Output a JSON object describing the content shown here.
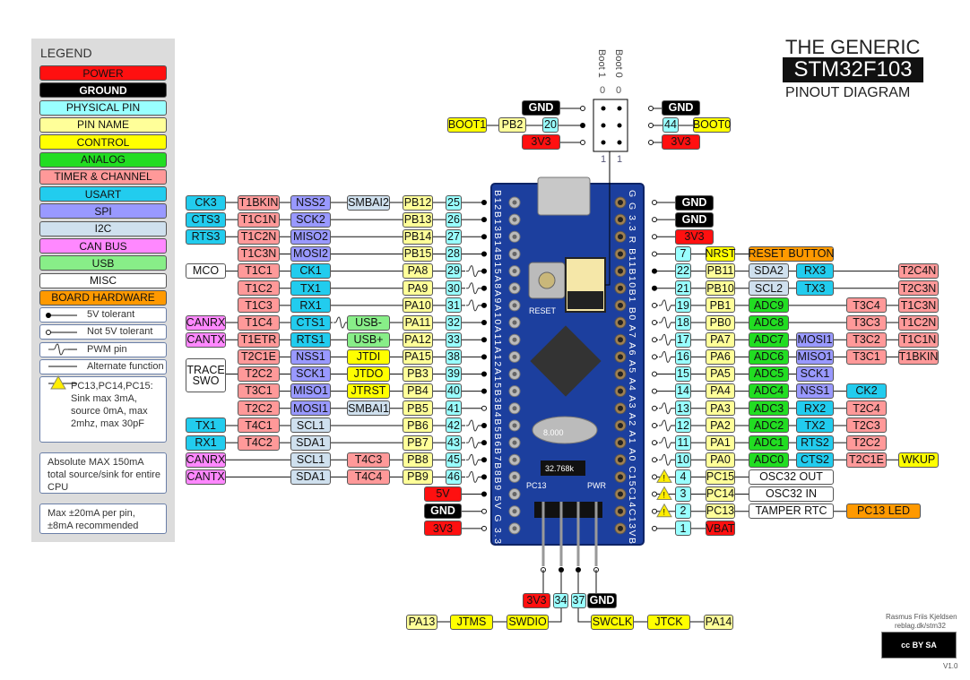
{
  "title": {
    "line1": "THE GENERIC",
    "line2": "STM32F103",
    "line3": "PINOUT DIAGRAM"
  },
  "colors": {
    "power": "#ff1010",
    "ground": "#000000",
    "physical": "#99ffff",
    "pinname": "#ffff99",
    "control": "#ffff00",
    "analog": "#22dd22",
    "timer": "#ff9999",
    "usart": "#22ccee",
    "spi": "#9999ff",
    "i2c": "#cfe0ee",
    "can": "#ff88ff",
    "usb": "#88ee88",
    "misc": "#ffffff",
    "board": "#ff9900",
    "pcb": "#1c3f9e"
  },
  "legend": {
    "title": "LEGEND",
    "items": [
      {
        "label": "POWER",
        "k": "power"
      },
      {
        "label": "GROUND",
        "k": "ground"
      },
      {
        "label": "PHYSICAL PIN",
        "k": "physical"
      },
      {
        "label": "PIN NAME",
        "k": "pinname"
      },
      {
        "label": "CONTROL",
        "k": "control"
      },
      {
        "label": "ANALOG",
        "k": "analog"
      },
      {
        "label": "TIMER & CHANNEL",
        "k": "timer"
      },
      {
        "label": "USART",
        "k": "usart"
      },
      {
        "label": "SPI",
        "k": "spi"
      },
      {
        "label": "I2C",
        "k": "i2c"
      },
      {
        "label": "CAN BUS",
        "k": "can"
      },
      {
        "label": "USB",
        "k": "usb"
      },
      {
        "label": "MISC",
        "k": "misc"
      },
      {
        "label": "BOARD HARDWARE",
        "k": "board"
      }
    ],
    "symbols": [
      {
        "label": "5V tolerant",
        "icon": "filled-dot"
      },
      {
        "label": "Not 5V tolerant",
        "icon": "open-dot"
      },
      {
        "label": "PWM pin",
        "icon": "pwm-wave"
      },
      {
        "label": "Alternate function",
        "icon": "line"
      }
    ],
    "warning": "PC13,PC14,PC15: Sink max 3mA, source 0mA, max 2mhz, max 30pF",
    "note1": "Absolute MAX 150mA total source/sink for entire CPU",
    "note2": "Max ±20mA per pin, ±8mA recommended"
  },
  "left_pins": [
    {
      "cells": [
        {
          "t": "CK3",
          "k": "usart"
        },
        {
          "t": "T1BKIN",
          "k": "timer"
        },
        {
          "t": "NSS2",
          "k": "spi"
        },
        {
          "t": "SMBAI2",
          "k": "i2c"
        },
        {
          "t": "PB12",
          "k": "pinname"
        },
        {
          "t": "25",
          "k": "physical"
        }
      ],
      "tol": "5v"
    },
    {
      "cells": [
        {
          "t": "CTS3",
          "k": "usart"
        },
        {
          "t": "T1C1N",
          "k": "timer"
        },
        {
          "t": "SCK2",
          "k": "spi"
        },
        null,
        {
          "t": "PB13",
          "k": "pinname"
        },
        {
          "t": "26",
          "k": "physical"
        }
      ],
      "tol": "5v"
    },
    {
      "cells": [
        {
          "t": "RTS3",
          "k": "usart"
        },
        {
          "t": "T1C2N",
          "k": "timer"
        },
        {
          "t": "MISO2",
          "k": "spi"
        },
        null,
        {
          "t": "PB14",
          "k": "pinname"
        },
        {
          "t": "27",
          "k": "physical"
        }
      ],
      "tol": "5v"
    },
    {
      "cells": [
        null,
        {
          "t": "T1C3N",
          "k": "timer"
        },
        {
          "t": "MOSI2",
          "k": "spi"
        },
        null,
        {
          "t": "PB15",
          "k": "pinname"
        },
        {
          "t": "28",
          "k": "physical"
        }
      ],
      "tol": "5v"
    },
    {
      "cells": [
        {
          "t": "MCO",
          "k": "misc"
        },
        {
          "t": "T1C1",
          "k": "timer"
        },
        {
          "t": "CK1",
          "k": "usart"
        },
        null,
        {
          "t": "PA8",
          "k": "pinname"
        },
        {
          "t": "29",
          "k": "physical"
        }
      ],
      "tol": "5v",
      "pwm": true
    },
    {
      "cells": [
        null,
        {
          "t": "T1C2",
          "k": "timer"
        },
        {
          "t": "TX1",
          "k": "usart"
        },
        null,
        {
          "t": "PA9",
          "k": "pinname"
        },
        {
          "t": "30",
          "k": "physical"
        }
      ],
      "tol": "5v",
      "pwm": true
    },
    {
      "cells": [
        null,
        {
          "t": "T1C3",
          "k": "timer"
        },
        {
          "t": "RX1",
          "k": "usart"
        },
        null,
        {
          "t": "PA10",
          "k": "pinname"
        },
        {
          "t": "31",
          "k": "physical"
        }
      ],
      "tol": "5v",
      "pwm": true
    },
    {
      "cells": [
        {
          "t": "CANRX",
          "k": "can"
        },
        {
          "t": "T1C4",
          "k": "timer"
        },
        {
          "t": "CTS1",
          "k": "usart"
        },
        {
          "t": "USB-",
          "k": "usb"
        },
        {
          "t": "PA11",
          "k": "pinname"
        },
        {
          "t": "32",
          "k": "physical"
        }
      ],
      "tol": "5v"
    },
    {
      "cells": [
        {
          "t": "CANTX",
          "k": "can"
        },
        {
          "t": "T1ETR",
          "k": "timer"
        },
        {
          "t": "RTS1",
          "k": "usart"
        },
        {
          "t": "USB+",
          "k": "usb"
        },
        {
          "t": "PA12",
          "k": "pinname"
        },
        {
          "t": "33",
          "k": "physical"
        }
      ],
      "tol": "5v"
    },
    {
      "cells": [
        null,
        {
          "t": "T2C1E",
          "k": "timer"
        },
        {
          "t": "NSS1",
          "k": "spi"
        },
        {
          "t": "JTDI",
          "k": "control"
        },
        {
          "t": "PA15",
          "k": "pinname"
        },
        {
          "t": "38",
          "k": "physical"
        }
      ],
      "tol": "5v"
    },
    {
      "cells": [
        {
          "t": "TRACE SWO",
          "k": "misc",
          "rows": 2
        },
        {
          "t": "T2C2",
          "k": "timer"
        },
        {
          "t": "SCK1",
          "k": "spi"
        },
        {
          "t": "JTDO",
          "k": "control"
        },
        {
          "t": "PB3",
          "k": "pinname"
        },
        {
          "t": "39",
          "k": "physical"
        }
      ],
      "tol": "5v"
    },
    {
      "cells": [
        null,
        {
          "t": "T3C1",
          "k": "timer"
        },
        {
          "t": "MISO1",
          "k": "spi"
        },
        {
          "t": "JTRST",
          "k": "control"
        },
        {
          "t": "PB4",
          "k": "pinname"
        },
        {
          "t": "40",
          "k": "physical"
        }
      ],
      "tol": "5v"
    },
    {
      "cells": [
        null,
        {
          "t": "T2C2",
          "k": "timer"
        },
        {
          "t": "MOSI1",
          "k": "spi"
        },
        {
          "t": "SMBAI1",
          "k": "i2c"
        },
        {
          "t": "PB5",
          "k": "pinname"
        },
        {
          "t": "41",
          "k": "physical"
        }
      ],
      "tol": "3v"
    },
    {
      "cells": [
        {
          "t": "TX1",
          "k": "usart"
        },
        {
          "t": "T4C1",
          "k": "timer"
        },
        {
          "t": "SCL1",
          "k": "i2c"
        },
        null,
        {
          "t": "PB6",
          "k": "pinname"
        },
        {
          "t": "42",
          "k": "physical"
        }
      ],
      "tol": "5v",
      "pwm": true
    },
    {
      "cells": [
        {
          "t": "RX1",
          "k": "usart"
        },
        {
          "t": "T4C2",
          "k": "timer"
        },
        {
          "t": "SDA1",
          "k": "i2c"
        },
        null,
        {
          "t": "PB7",
          "k": "pinname"
        },
        {
          "t": "43",
          "k": "physical"
        }
      ],
      "tol": "5v",
      "pwm": true
    },
    {
      "cells": [
        {
          "t": "CANRX",
          "k": "can"
        },
        null,
        {
          "t": "SCL1",
          "k": "i2c"
        },
        {
          "t": "T4C3",
          "k": "timer"
        },
        {
          "t": "PB8",
          "k": "pinname"
        },
        {
          "t": "45",
          "k": "physical"
        }
      ],
      "tol": "5v",
      "pwm": true
    },
    {
      "cells": [
        {
          "t": "CANTX",
          "k": "can"
        },
        null,
        {
          "t": "SDA1",
          "k": "i2c"
        },
        {
          "t": "T4C4",
          "k": "timer"
        },
        {
          "t": "PB9",
          "k": "pinname"
        },
        {
          "t": "46",
          "k": "physical"
        }
      ],
      "tol": "5v",
      "pwm": true
    }
  ],
  "left_power": [
    {
      "t": "5V",
      "k": "power",
      "tol": "5v"
    },
    {
      "t": "GND",
      "k": "ground",
      "tol": "3v"
    },
    {
      "t": "3V3",
      "k": "power",
      "tol": "3v"
    }
  ],
  "right_power": [
    {
      "t": "GND",
      "k": "ground",
      "tol": "3v"
    },
    {
      "t": "GND",
      "k": "ground",
      "tol": "3v"
    },
    {
      "t": "3V3",
      "k": "power",
      "tol": "3v"
    }
  ],
  "right_pins": [
    {
      "cells": [
        {
          "t": "7",
          "k": "physical"
        },
        {
          "t": "NRST",
          "k": "control"
        },
        {
          "t": "RESET BUTTON",
          "k": "board",
          "span": 2
        },
        null,
        null,
        null
      ],
      "tol": "3v"
    },
    {
      "cells": [
        {
          "t": "22",
          "k": "physical"
        },
        {
          "t": "PB11",
          "k": "pinname"
        },
        {
          "t": "SDA2",
          "k": "i2c"
        },
        {
          "t": "RX3",
          "k": "usart"
        },
        null,
        {
          "t": "T2C4N",
          "k": "timer"
        }
      ],
      "tol": "5v"
    },
    {
      "cells": [
        {
          "t": "21",
          "k": "physical"
        },
        {
          "t": "PB10",
          "k": "pinname"
        },
        {
          "t": "SCL2",
          "k": "i2c"
        },
        {
          "t": "TX3",
          "k": "usart"
        },
        null,
        {
          "t": "T2C3N",
          "k": "timer"
        }
      ],
      "tol": "5v"
    },
    {
      "cells": [
        {
          "t": "19",
          "k": "physical"
        },
        {
          "t": "PB1",
          "k": "pinname"
        },
        {
          "t": "ADC9",
          "k": "analog"
        },
        null,
        {
          "t": "T3C4",
          "k": "timer"
        },
        {
          "t": "T1C3N",
          "k": "timer"
        }
      ],
      "tol": "3v",
      "pwm": true
    },
    {
      "cells": [
        {
          "t": "18",
          "k": "physical"
        },
        {
          "t": "PB0",
          "k": "pinname"
        },
        {
          "t": "ADC8",
          "k": "analog"
        },
        null,
        {
          "t": "T3C3",
          "k": "timer"
        },
        {
          "t": "T1C2N",
          "k": "timer"
        }
      ],
      "tol": "3v",
      "pwm": true
    },
    {
      "cells": [
        {
          "t": "17",
          "k": "physical"
        },
        {
          "t": "PA7",
          "k": "pinname"
        },
        {
          "t": "ADC7",
          "k": "analog"
        },
        {
          "t": "MOSI1",
          "k": "spi"
        },
        {
          "t": "T3C2",
          "k": "timer"
        },
        {
          "t": "T1C1N",
          "k": "timer"
        }
      ],
      "tol": "3v",
      "pwm": true
    },
    {
      "cells": [
        {
          "t": "16",
          "k": "physical"
        },
        {
          "t": "PA6",
          "k": "pinname"
        },
        {
          "t": "ADC6",
          "k": "analog"
        },
        {
          "t": "MISO1",
          "k": "spi"
        },
        {
          "t": "T3C1",
          "k": "timer"
        },
        {
          "t": "T1BKIN",
          "k": "timer"
        }
      ],
      "tol": "3v",
      "pwm": true
    },
    {
      "cells": [
        {
          "t": "15",
          "k": "physical"
        },
        {
          "t": "PA5",
          "k": "pinname"
        },
        {
          "t": "ADC5",
          "k": "analog"
        },
        {
          "t": "SCK1",
          "k": "spi"
        },
        null,
        null
      ],
      "tol": "3v"
    },
    {
      "cells": [
        {
          "t": "14",
          "k": "physical"
        },
        {
          "t": "PA4",
          "k": "pinname"
        },
        {
          "t": "ADC4",
          "k": "analog"
        },
        {
          "t": "NSS1",
          "k": "spi"
        },
        {
          "t": "CK2",
          "k": "usart"
        },
        null
      ],
      "tol": "3v"
    },
    {
      "cells": [
        {
          "t": "13",
          "k": "physical"
        },
        {
          "t": "PA3",
          "k": "pinname"
        },
        {
          "t": "ADC3",
          "k": "analog"
        },
        {
          "t": "RX2",
          "k": "usart"
        },
        {
          "t": "T2C4",
          "k": "timer"
        },
        null
      ],
      "tol": "3v",
      "pwm": true
    },
    {
      "cells": [
        {
          "t": "12",
          "k": "physical"
        },
        {
          "t": "PA2",
          "k": "pinname"
        },
        {
          "t": "ADC2",
          "k": "analog"
        },
        {
          "t": "TX2",
          "k": "usart"
        },
        {
          "t": "T2C3",
          "k": "timer"
        },
        null
      ],
      "tol": "3v",
      "pwm": true
    },
    {
      "cells": [
        {
          "t": "11",
          "k": "physical"
        },
        {
          "t": "PA1",
          "k": "pinname"
        },
        {
          "t": "ADC1",
          "k": "analog"
        },
        {
          "t": "RTS2",
          "k": "usart"
        },
        {
          "t": "T2C2",
          "k": "timer"
        },
        null
      ],
      "tol": "3v",
      "pwm": true
    },
    {
      "cells": [
        {
          "t": "10",
          "k": "physical"
        },
        {
          "t": "PA0",
          "k": "pinname"
        },
        {
          "t": "ADC0",
          "k": "analog"
        },
        {
          "t": "CTS2",
          "k": "usart"
        },
        {
          "t": "T2C1E",
          "k": "timer"
        },
        {
          "t": "WKUP",
          "k": "control"
        }
      ],
      "tol": "3v",
      "pwm": true
    },
    {
      "cells": [
        {
          "t": "4",
          "k": "physical"
        },
        {
          "t": "PC15",
          "k": "pinname"
        },
        {
          "t": "OSC32 OUT",
          "k": "misc",
          "span": 2
        },
        null,
        null,
        null
      ],
      "tol": "3v",
      "warn": true
    },
    {
      "cells": [
        {
          "t": "3",
          "k": "physical"
        },
        {
          "t": "PC14",
          "k": "pinname"
        },
        {
          "t": "OSC32 IN",
          "k": "misc",
          "span": 2
        },
        null,
        null,
        null
      ],
      "tol": "3v",
      "warn": true
    },
    {
      "cells": [
        {
          "t": "2",
          "k": "physical"
        },
        {
          "t": "PC13",
          "k": "pinname"
        },
        {
          "t": "TAMPER RTC",
          "k": "misc",
          "span": 2
        },
        null,
        {
          "t": "PC13 LED",
          "k": "board",
          "span": 2
        },
        null
      ],
      "tol": "3v",
      "warn": true
    },
    {
      "cells": [
        {
          "t": "1",
          "k": "physical"
        },
        {
          "t": "VBAT",
          "k": "power"
        },
        null,
        null,
        null,
        null
      ],
      "tol": "3v"
    }
  ],
  "boot": {
    "label_boot1": "Boot 1",
    "label_boot0": "Boot 0",
    "zero": "0",
    "one": "1",
    "left": [
      {
        "t": "GND",
        "k": "ground"
      },
      {
        "t": "BOOT1",
        "k": "control"
      },
      {
        "t": "PB2",
        "k": "pinname"
      },
      {
        "t": "20",
        "k": "physical"
      },
      {
        "t": "3V3",
        "k": "power"
      }
    ],
    "right": [
      {
        "t": "GND",
        "k": "ground"
      },
      {
        "t": "44",
        "k": "physical"
      },
      {
        "t": "BOOT0",
        "k": "control"
      },
      {
        "t": "3V3",
        "k": "power"
      }
    ]
  },
  "swd": {
    "header": [
      {
        "t": "3V3",
        "k": "power"
      },
      {
        "t": "34",
        "k": "physical"
      },
      {
        "t": "37",
        "k": "physical"
      },
      {
        "t": "GND",
        "k": "ground"
      }
    ],
    "row": [
      {
        "t": "PA13",
        "k": "pinname"
      },
      {
        "t": "JTMS",
        "k": "control"
      },
      {
        "t": "SWDIO",
        "k": "control"
      },
      {
        "t": "SWCLK",
        "k": "control"
      },
      {
        "t": "JTCK",
        "k": "control"
      },
      {
        "t": "PA14",
        "k": "pinname"
      }
    ]
  },
  "board": {
    "silk_left": "B12B13B14B15A8A9A10A11A12A15B3B4B5B6B7B8B9 5V G 3.3",
    "silk_right": "G G 3.3 R B11B10B1 B0 A7 A6 A5 A4 A3 A2 A1 A0 C15C14C13VB",
    "reset": "RESET",
    "crystal": "8.000",
    "rtc_crystal": "32.768k",
    "pc13": "PC13",
    "pwr": "PWR"
  },
  "credits": {
    "author": "Rasmus Friis Kjeldsen",
    "site": "reblag.dk/stm32",
    "license": "cc BY SA",
    "version": "V1.0"
  }
}
